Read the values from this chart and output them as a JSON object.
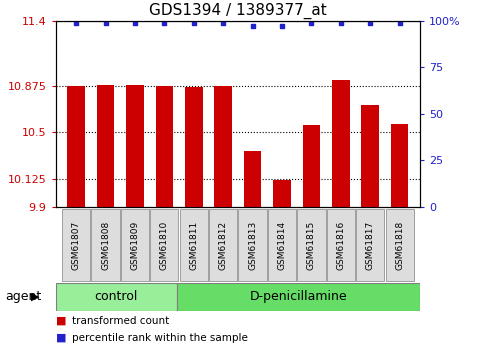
{
  "title": "GDS1394 / 1389377_at",
  "categories": [
    "GSM61807",
    "GSM61808",
    "GSM61809",
    "GSM61810",
    "GSM61811",
    "GSM61812",
    "GSM61813",
    "GSM61814",
    "GSM61815",
    "GSM61816",
    "GSM61817",
    "GSM61818"
  ],
  "bar_values": [
    10.875,
    10.882,
    10.885,
    10.875,
    10.87,
    10.875,
    10.35,
    10.115,
    10.56,
    10.92,
    10.72,
    10.565
  ],
  "percentile_values": [
    99,
    99,
    99,
    99,
    99,
    99,
    97,
    97,
    99,
    99,
    99,
    99
  ],
  "bar_color": "#cc0000",
  "dot_color": "#2222cc",
  "ylim_left": [
    9.9,
    11.4
  ],
  "ylim_right": [
    0,
    100
  ],
  "yticks_left": [
    9.9,
    10.125,
    10.5,
    10.875,
    11.4
  ],
  "ytick_labels_left": [
    "9.9",
    "10.125",
    "10.5",
    "10.875",
    "11.4"
  ],
  "yticks_right": [
    0,
    25,
    50,
    75,
    100
  ],
  "ytick_labels_right": [
    "0",
    "25",
    "50",
    "75",
    "100%"
  ],
  "hgrid_lines": [
    10.125,
    10.5,
    10.875
  ],
  "groups": [
    {
      "label": "control",
      "count": 4,
      "color": "#99ee99"
    },
    {
      "label": "D-penicillamine",
      "count": 8,
      "color": "#66dd66"
    }
  ],
  "agent_label": "agent",
  "legend_items": [
    {
      "color": "#cc0000",
      "label": "transformed count"
    },
    {
      "color": "#2222cc",
      "label": "percentile rank within the sample"
    }
  ],
  "background_color": "#ffffff",
  "bar_width": 0.6,
  "title_fontsize": 11,
  "tick_fontsize": 8,
  "label_fontsize": 9
}
